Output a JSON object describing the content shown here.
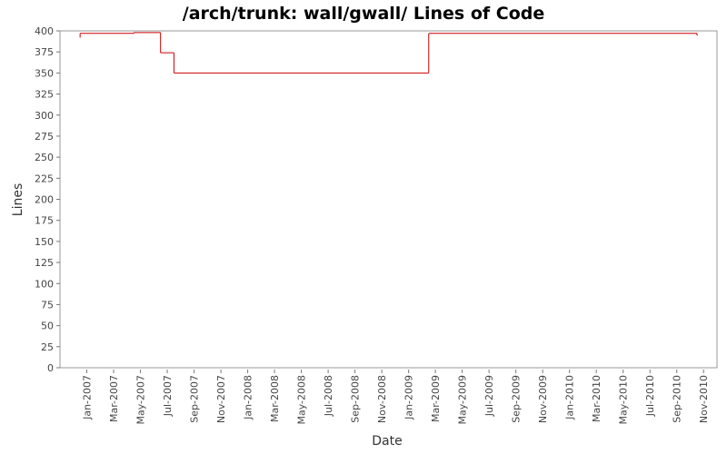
{
  "chart_data": {
    "type": "step",
    "title": "/arch/trunk: wall/gwall/ Lines of Code",
    "x_label": "Date",
    "y_label": "Lines",
    "x": [
      "Dec-2006",
      "Dec-2006",
      "Apr-2007",
      "Jun-2007",
      "Jul-2007",
      "Feb-2009",
      "Oct-2010",
      "Oct-2010"
    ],
    "values": [
      392,
      397,
      398,
      374,
      350,
      397,
      397,
      395
    ],
    "color": "#cc0000",
    "xlim": [
      "Nov-2006",
      "Dec-2010"
    ],
    "xticks": [
      "Jan-2007",
      "Mar-2007",
      "May-2007",
      "Jul-2007",
      "Sep-2007",
      "Nov-2007",
      "Jan-2008",
      "Mar-2008",
      "May-2008",
      "Jul-2008",
      "Sep-2008",
      "Nov-2008",
      "Jan-2009",
      "Mar-2009",
      "May-2009",
      "Jul-2009",
      "Sep-2009",
      "Nov-2009",
      "Jan-2010",
      "Mar-2010",
      "May-2010",
      "Jul-2010",
      "Sep-2010",
      "Nov-2010"
    ],
    "ylim": [
      0,
      400
    ],
    "yticks": [
      0,
      25,
      50,
      75,
      100,
      125,
      150,
      175,
      200,
      225,
      250,
      275,
      300,
      325,
      350,
      375,
      400
    ]
  }
}
